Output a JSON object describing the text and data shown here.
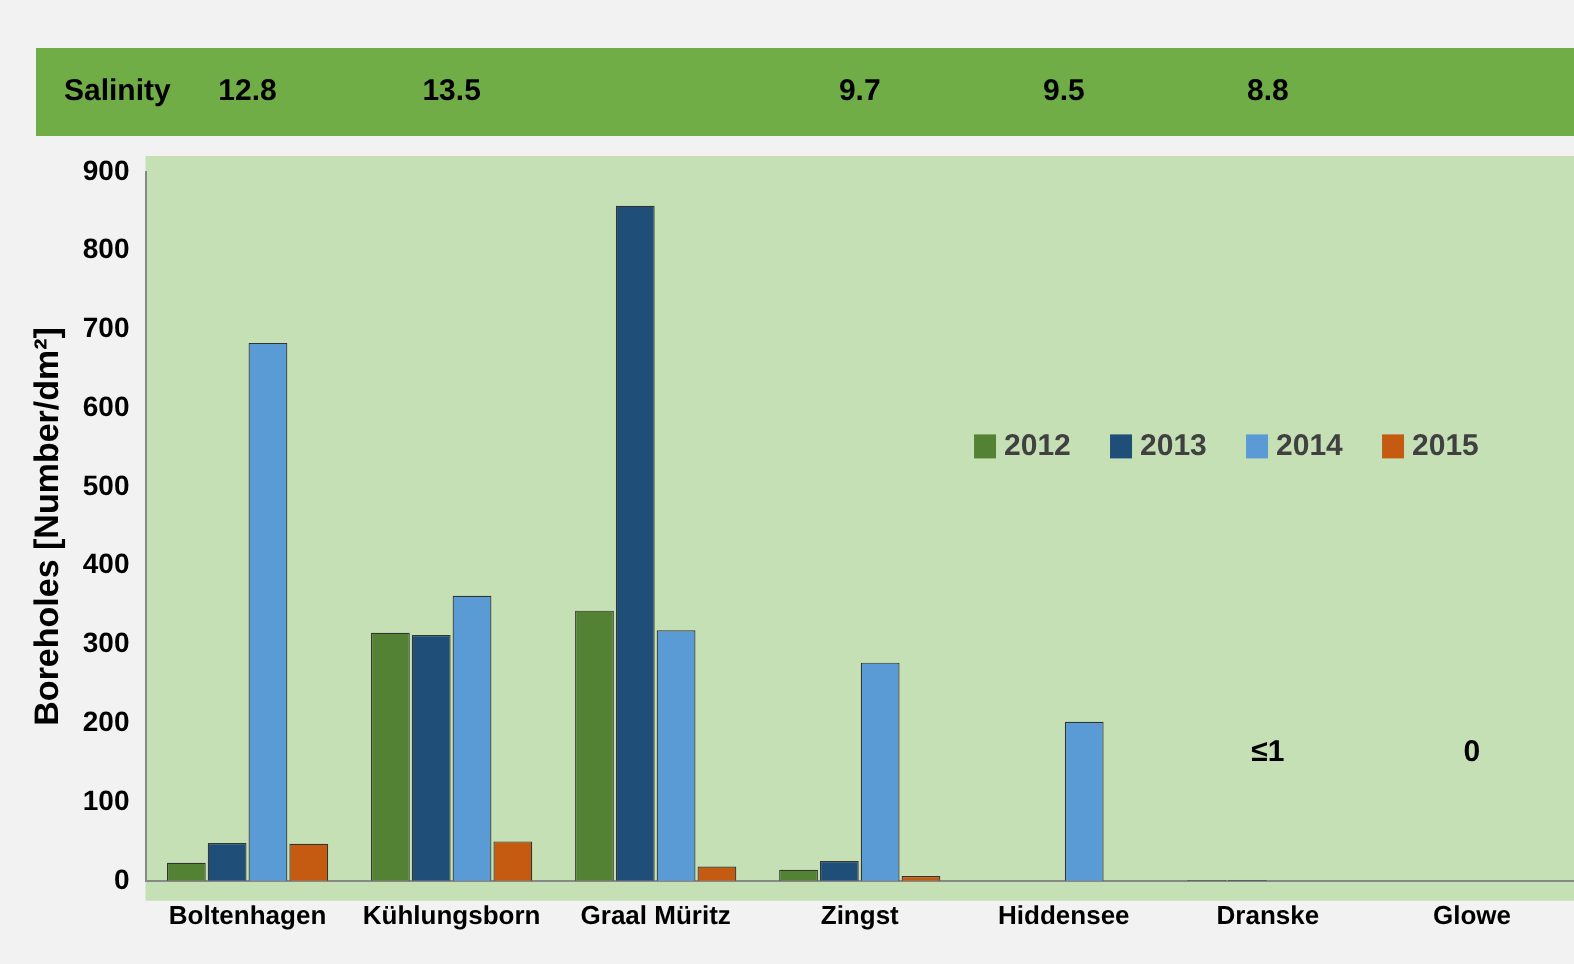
{
  "chart_data": {
    "type": "bar",
    "ylabel": "Boreholes [Number/dm²]",
    "categories": [
      "Boltenhagen",
      "Kühlungsborn",
      "Graal Müritz",
      "Zingst",
      "Hiddensee",
      "Dranske",
      "Glowe"
    ],
    "series": [
      {
        "name": "2012",
        "color": "#548235",
        "values": [
          23,
          315,
          343,
          14,
          null,
          1,
          null
        ]
      },
      {
        "name": "2013",
        "color": "#1f4e79",
        "values": [
          48,
          312,
          857,
          25,
          null,
          1,
          null
        ]
      },
      {
        "name": "2014",
        "color": "#5b9bd5",
        "values": [
          683,
          362,
          318,
          277,
          202,
          null,
          null
        ]
      },
      {
        "name": "2015",
        "color": "#c55a11",
        "values": [
          47,
          50,
          18,
          6,
          null,
          null,
          null
        ]
      }
    ],
    "ylim": [
      0,
      900
    ],
    "yticks": [
      0,
      100,
      200,
      300,
      400,
      500,
      600,
      700,
      800,
      900
    ],
    "grid": false,
    "legend": "right",
    "annotations": [
      "Salinity",
      "12.8",
      "13.5",
      "9.7",
      "9.5",
      "8.8",
      "≤1",
      "0"
    ]
  }
}
